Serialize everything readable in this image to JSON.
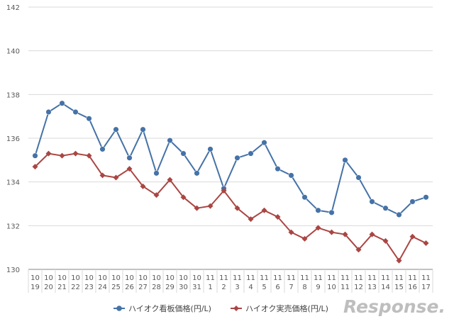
{
  "chart_data": {
    "type": "line",
    "title": "",
    "xlabel": "",
    "ylabel": "",
    "ylim": [
      130,
      142
    ],
    "yticks": [
      130,
      132,
      134,
      136,
      138,
      140,
      142
    ],
    "grid": true,
    "legend_position": "bottom",
    "categories": [
      {
        "month": "10",
        "day": "19"
      },
      {
        "month": "10",
        "day": "20"
      },
      {
        "month": "10",
        "day": "21"
      },
      {
        "month": "10",
        "day": "22"
      },
      {
        "month": "10",
        "day": "23"
      },
      {
        "month": "10",
        "day": "24"
      },
      {
        "month": "10",
        "day": "25"
      },
      {
        "month": "10",
        "day": "26"
      },
      {
        "month": "10",
        "day": "27"
      },
      {
        "month": "10",
        "day": "28"
      },
      {
        "month": "10",
        "day": "29"
      },
      {
        "month": "10",
        "day": "30"
      },
      {
        "month": "10",
        "day": "31"
      },
      {
        "month": "11",
        "day": "1"
      },
      {
        "month": "11",
        "day": "2"
      },
      {
        "month": "11",
        "day": "3"
      },
      {
        "month": "11",
        "day": "4"
      },
      {
        "month": "11",
        "day": "5"
      },
      {
        "month": "11",
        "day": "6"
      },
      {
        "month": "11",
        "day": "7"
      },
      {
        "month": "11",
        "day": "8"
      },
      {
        "month": "11",
        "day": "9"
      },
      {
        "month": "11",
        "day": "10"
      },
      {
        "month": "11",
        "day": "11"
      },
      {
        "month": "11",
        "day": "12"
      },
      {
        "month": "11",
        "day": "13"
      },
      {
        "month": "11",
        "day": "14"
      },
      {
        "month": "11",
        "day": "15"
      },
      {
        "month": "11",
        "day": "16"
      },
      {
        "month": "11",
        "day": "17"
      }
    ],
    "series": [
      {
        "name": "ハイオク看板価格(円/L)",
        "color": "#4572a7",
        "marker": "circle",
        "values": [
          135.2,
          137.2,
          137.6,
          137.2,
          136.9,
          135.5,
          136.4,
          135.1,
          136.4,
          134.4,
          135.9,
          135.3,
          134.4,
          135.5,
          133.7,
          135.1,
          135.3,
          135.8,
          134.6,
          134.3,
          133.3,
          132.7,
          132.6,
          135.0,
          134.2,
          133.1,
          132.8,
          132.5,
          133.1,
          133.3
        ]
      },
      {
        "name": "ハイオク実売価格(円/L)",
        "color": "#aa4643",
        "marker": "diamond",
        "values": [
          134.7,
          135.3,
          135.2,
          135.3,
          135.2,
          134.3,
          134.2,
          134.6,
          133.8,
          133.4,
          134.1,
          133.3,
          132.8,
          132.9,
          133.6,
          132.8,
          132.3,
          132.7,
          132.4,
          131.7,
          131.4,
          131.9,
          131.7,
          131.6,
          130.9,
          131.6,
          131.3,
          130.4,
          131.5,
          131.2
        ]
      }
    ]
  },
  "watermark": {
    "text": "Response."
  },
  "colors": {
    "grid": "#d9d9d9",
    "axis": "#868686",
    "tick_text": "#595959",
    "watermark": "#b3b3b3"
  }
}
